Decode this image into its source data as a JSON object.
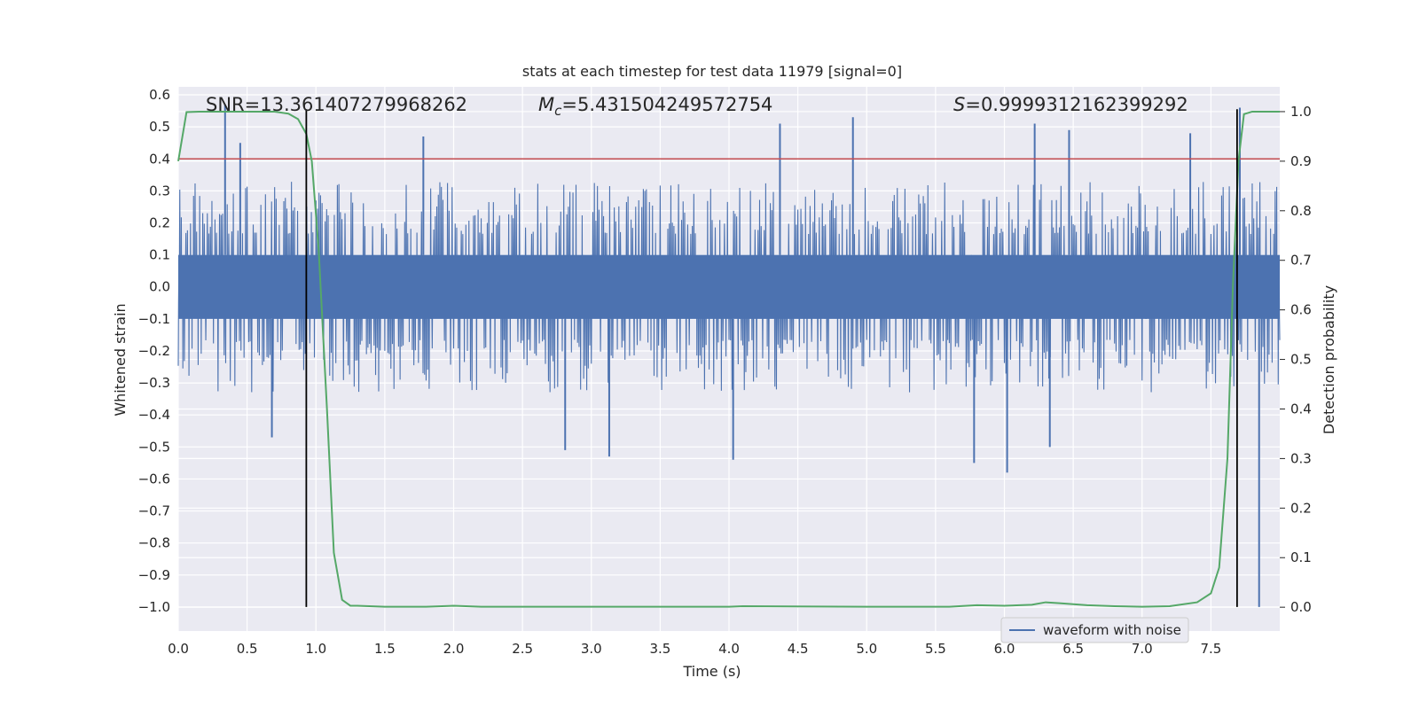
{
  "chart_data": {
    "type": "line",
    "title": "stats at each timestep for test data 11979 [signal=0]",
    "xlabel": "Time (s)",
    "ylabel": "Whitened strain",
    "y2label": "Detection probability",
    "xlim": [
      0.0,
      8.0
    ],
    "ylim": [
      -1.075,
      0.625
    ],
    "y2lim": [
      -0.048,
      1.05
    ],
    "xticks": [
      0.0,
      0.5,
      1.0,
      1.5,
      2.0,
      2.5,
      3.0,
      3.5,
      4.0,
      4.5,
      5.0,
      5.5,
      6.0,
      6.5,
      7.0,
      7.5
    ],
    "xtick_labels": [
      "0.0",
      "0.5",
      "1.0",
      "1.5",
      "2.0",
      "2.5",
      "3.0",
      "3.5",
      "4.0",
      "4.5",
      "5.0",
      "5.5",
      "6.0",
      "6.5",
      "7.0",
      "7.5"
    ],
    "yticks": [
      0.6,
      0.5,
      0.4,
      0.3,
      0.2,
      0.1,
      0.0,
      -0.1,
      -0.2,
      -0.3,
      -0.4,
      -0.5,
      -0.6,
      -0.7,
      -0.8,
      -0.9,
      -1.0
    ],
    "ytick_labels": [
      "0.6",
      "0.5",
      "0.4",
      "0.3",
      "0.2",
      "0.1",
      "0.0",
      "−0.1",
      "−0.2",
      "−0.3",
      "−0.4",
      "−0.5",
      "−0.6",
      "−0.7",
      "−0.8",
      "−0.9",
      "−1.0"
    ],
    "y2ticks": [
      1.0,
      0.9,
      0.8,
      0.7,
      0.6,
      0.5,
      0.4,
      0.3,
      0.2,
      0.1,
      0.0
    ],
    "y2tick_labels": [
      "1.0",
      "0.9",
      "0.8",
      "0.7",
      "0.6",
      "0.5",
      "0.4",
      "0.3",
      "0.2",
      "0.1",
      "0.0"
    ],
    "grid": true,
    "legend": {
      "position": "bottom-right",
      "entries": [
        "waveform with noise"
      ]
    },
    "annotations": {
      "snr": "SNR=13.361407279968262",
      "mc_symbol": "M",
      "mc_sub": "c",
      "mc_value": "=5.431504249572754",
      "s_symbol": "S",
      "s_value": "=0.9999312162399292"
    },
    "series": [
      {
        "name": "waveform with noise",
        "axis": "left",
        "color": "#4c72b0",
        "kind": "noise",
        "x_range": [
          0.0,
          8.0
        ],
        "core_amplitude": 0.1,
        "envelope_amplitude": 0.3,
        "peaks": [
          {
            "x": 0.34,
            "y": 0.57
          },
          {
            "x": 0.45,
            "y": 0.45
          },
          {
            "x": 1.78,
            "y": 0.47
          },
          {
            "x": 4.37,
            "y": 0.51
          },
          {
            "x": 4.9,
            "y": 0.53
          },
          {
            "x": 6.22,
            "y": 0.51
          },
          {
            "x": 6.47,
            "y": 0.49
          },
          {
            "x": 7.35,
            "y": 0.48
          },
          {
            "x": 7.71,
            "y": 0.56
          },
          {
            "x": 0.68,
            "y": -0.47
          },
          {
            "x": 2.81,
            "y": -0.51
          },
          {
            "x": 3.13,
            "y": -0.53
          },
          {
            "x": 4.03,
            "y": -0.54
          },
          {
            "x": 5.78,
            "y": -0.55
          },
          {
            "x": 6.02,
            "y": -0.58
          },
          {
            "x": 6.33,
            "y": -0.5
          },
          {
            "x": 7.85,
            "y": -1.0
          }
        ]
      },
      {
        "name": "detection probability",
        "axis": "right",
        "color": "#55a868",
        "x": [
          0.0,
          0.06,
          0.15,
          0.3,
          0.5,
          0.7,
          0.8,
          0.87,
          0.93,
          0.97,
          1.02,
          1.08,
          1.13,
          1.19,
          1.25,
          1.3,
          1.5,
          1.8,
          2.0,
          2.2,
          3.0,
          4.0,
          4.1,
          5.0,
          5.6,
          5.8,
          6.0,
          6.2,
          6.3,
          6.4,
          6.6,
          6.8,
          7.0,
          7.2,
          7.4,
          7.5,
          7.56,
          7.62,
          7.66,
          7.7,
          7.74,
          7.8,
          8.0
        ],
        "y": [
          0.9,
          0.999,
          1.0,
          1.0,
          1.0,
          1.0,
          0.996,
          0.985,
          0.955,
          0.9,
          0.72,
          0.4,
          0.11,
          0.015,
          0.003,
          0.003,
          0.001,
          0.001,
          0.003,
          0.001,
          0.001,
          0.001,
          0.002,
          0.001,
          0.001,
          0.004,
          0.003,
          0.005,
          0.01,
          0.008,
          0.004,
          0.002,
          0.001,
          0.002,
          0.01,
          0.028,
          0.08,
          0.3,
          0.65,
          0.9,
          0.995,
          1.0,
          1.0
        ]
      }
    ],
    "hlines": [
      {
        "axis": "left",
        "y": 0.4,
        "color": "#c44e52"
      }
    ],
    "vlines": [
      {
        "x": 0.93,
        "y_from": -1.0,
        "y_to": 0.555,
        "color": "#000000"
      },
      {
        "x": 7.69,
        "y_from": -1.0,
        "y_to": 0.555,
        "color": "#000000"
      }
    ],
    "colors": {
      "plot_background": "#eaeaf2",
      "grid": "#ffffff",
      "text": "#262626"
    }
  }
}
